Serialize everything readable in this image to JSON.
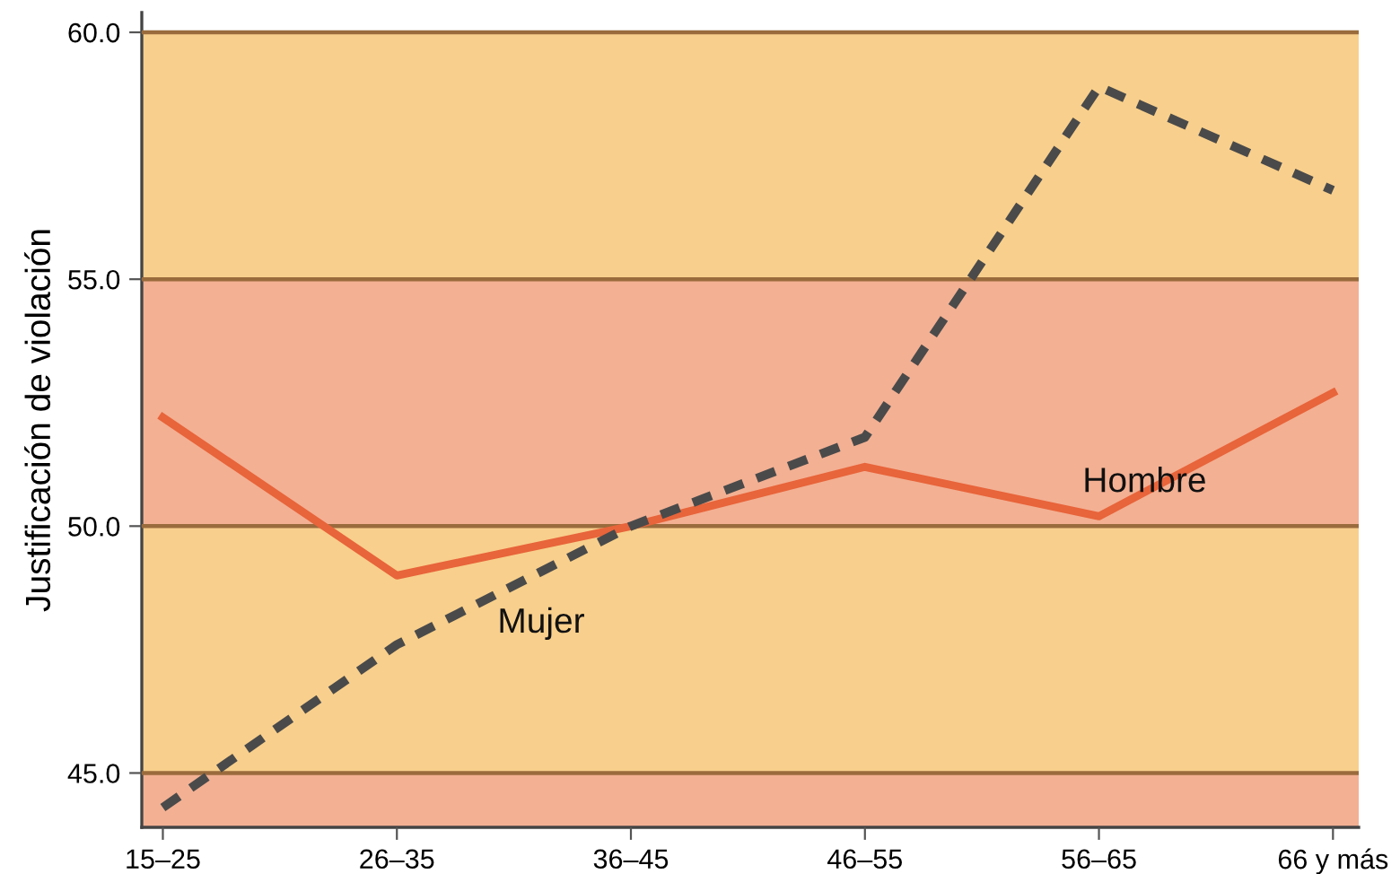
{
  "chart_data": {
    "type": "line",
    "ylabel": "Justificación de violación",
    "categories": [
      "15–25",
      "26–35",
      "36–45",
      "46–55",
      "56–65",
      "66 y más"
    ],
    "series": [
      {
        "name": "Hombre",
        "color": "#e8643a",
        "line_style": "solid",
        "values": [
          52.2,
          49.0,
          50.0,
          51.2,
          50.2,
          52.7
        ]
      },
      {
        "name": "Mujer",
        "color": "#4a4a4a",
        "line_style": "dashed",
        "values": [
          44.3,
          47.6,
          50.0,
          51.8,
          58.9,
          56.8
        ]
      }
    ],
    "ylim": [
      43.9,
      60.4
    ],
    "yticks": [
      {
        "value": 45,
        "label": "45.0"
      },
      {
        "value": 50,
        "label": "50.0"
      },
      {
        "value": 55,
        "label": "55.0"
      },
      {
        "value": 60,
        "label": "60.0"
      }
    ],
    "grid": "y",
    "legend": false,
    "marker": "none",
    "bands": [
      {
        "axis": "y",
        "from": 43.9,
        "to": 45,
        "color": "#f3b093"
      },
      {
        "axis": "y",
        "from": 45,
        "to": 50,
        "color": "#f8cf8c"
      },
      {
        "axis": "y",
        "from": 50,
        "to": 55,
        "color": "#f3b093"
      },
      {
        "axis": "y",
        "from": 55,
        "to": 60,
        "color": "#f8cf8c"
      }
    ]
  }
}
